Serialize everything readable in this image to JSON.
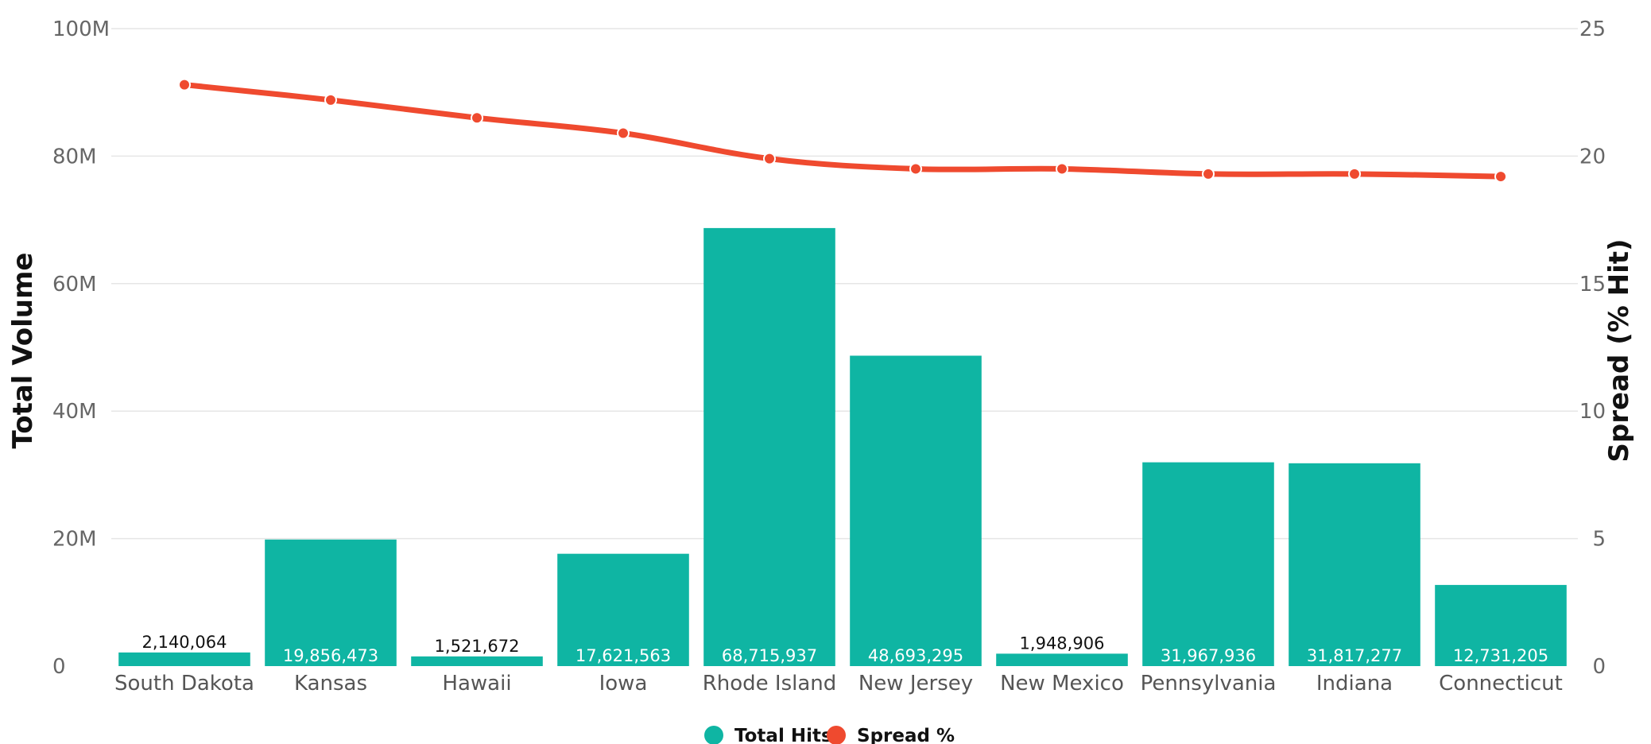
{
  "chart_data": {
    "type": "bar",
    "categories": [
      "South Dakota",
      "Kansas",
      "Hawaii",
      "Iowa",
      "Rhode Island",
      "New Jersey",
      "New Mexico",
      "Pennsylvania",
      "Indiana",
      "Connecticut"
    ],
    "series": [
      {
        "name": "Total Hits",
        "type": "bar",
        "axis": "left",
        "color": "#0fb5a3",
        "values": [
          2140064,
          19856473,
          1521672,
          17621563,
          68715937,
          48693295,
          1948906,
          31967936,
          31817277,
          12731205
        ],
        "labels": [
          "2,140,064",
          "19,856,473",
          "1,521,672",
          "17,621,563",
          "68,715,937",
          "48,693,295",
          "1,948,906",
          "31,967,936",
          "31,817,277",
          "12,731,205"
        ]
      },
      {
        "name": "Spread %",
        "type": "line",
        "axis": "right",
        "color": "#ef4a2f",
        "values": [
          22.8,
          22.2,
          21.5,
          20.9,
          19.9,
          19.5,
          19.5,
          19.3,
          19.3,
          19.2
        ]
      }
    ],
    "ylabel": "Total Volume",
    "y2label": "Spread (% Hit)",
    "ylim": [
      0,
      100000000
    ],
    "y2lim": [
      0,
      25
    ],
    "yticks": [
      "0",
      "20M",
      "40M",
      "60M",
      "80M",
      "100M"
    ],
    "y2ticks": [
      "0",
      "5",
      "10",
      "15",
      "20",
      "25"
    ],
    "grid": true,
    "legend": "bottom-center"
  }
}
